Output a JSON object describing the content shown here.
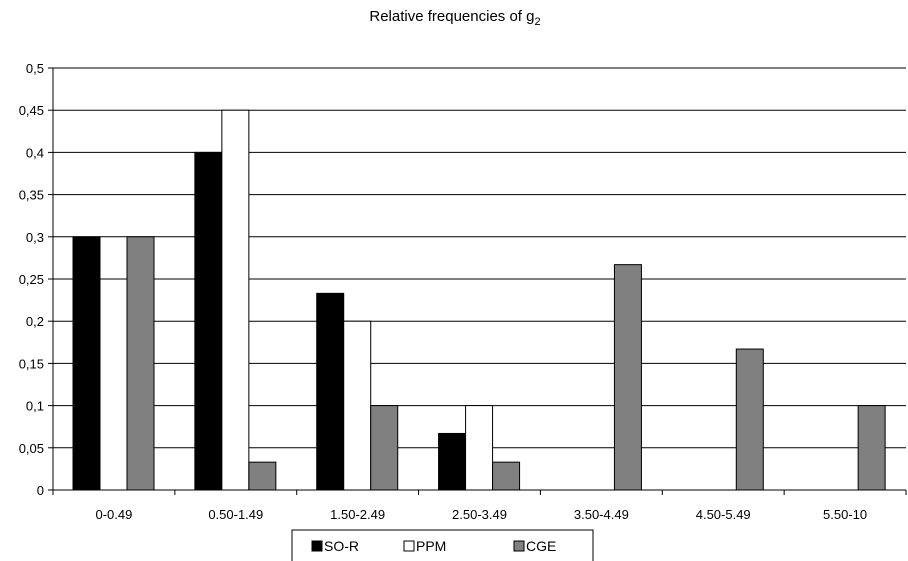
{
  "chart_data": {
    "type": "bar",
    "title": "Relative frequencies of g",
    "title_subscript": "2",
    "xlabel": "",
    "ylabel": "",
    "ylim": [
      0,
      0.5
    ],
    "y_ticks": [
      "0",
      "0,05",
      "0,1",
      "0,15",
      "0,2",
      "0,25",
      "0,3",
      "0,35",
      "0,4",
      "0,45",
      "0,5"
    ],
    "y_tick_values": [
      0,
      0.05,
      0.1,
      0.15,
      0.2,
      0.25,
      0.3,
      0.35,
      0.4,
      0.45,
      0.5
    ],
    "grid": "horizontal",
    "legend_position": "bottom",
    "categories": [
      "0-0.49",
      "0.50-1.49",
      "1.50-2.49",
      "2.50-3.49",
      "3.50-4.49",
      "4.50-5.49",
      "5.50-10"
    ],
    "series": [
      {
        "name": "SO-R",
        "color": "#000000",
        "values": [
          0.3,
          0.4,
          0.233,
          0.067,
          0,
          0,
          0
        ]
      },
      {
        "name": "PPM",
        "color": "#ffffff",
        "values": [
          0.25,
          0.45,
          0.2,
          0.1,
          0,
          0,
          0
        ]
      },
      {
        "name": "CGE",
        "color": "#808080",
        "values": [
          0.3,
          0.033,
          0.1,
          0.033,
          0.267,
          0.167,
          0.1
        ]
      }
    ]
  }
}
